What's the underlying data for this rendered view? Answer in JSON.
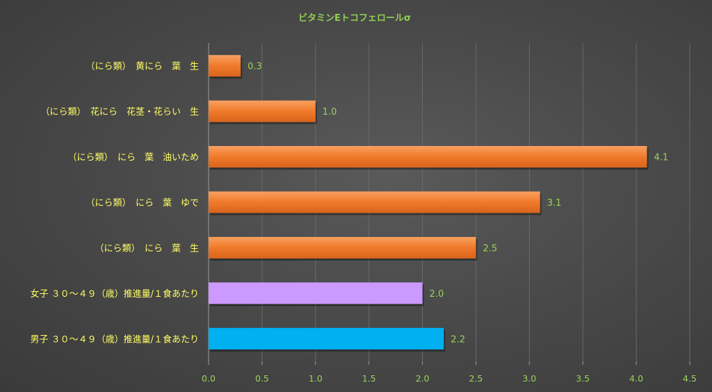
{
  "chart_data": {
    "type": "bar",
    "orientation": "horizontal",
    "title": "ビタミンEトコフェロールσ",
    "categories": [
      "（にら類）　黄にら　葉　生",
      "（にら類）　花にら　花茎・花らい　生",
      "（にら類）　にら　葉　油いため",
      "（にら類）　にら　葉　ゆで",
      "（にら類）　にら　葉　生",
      "女子 ３０～４９（歳）推進量/１食あたり",
      "男子 ３０～４９（歳）推進量/１食あたり"
    ],
    "values": [
      0.3,
      1.0,
      4.1,
      3.1,
      2.5,
      2.0,
      2.2
    ],
    "value_labels": [
      "0.3",
      "1.0",
      "4.1",
      "3.1",
      "2.5",
      "2.0",
      "2.2"
    ],
    "bar_colors": [
      "#f07828",
      "#f07828",
      "#f07828",
      "#f07828",
      "#f07828",
      "#cc99ff",
      "#00b0f0"
    ],
    "xlim": [
      0,
      4.5
    ],
    "x_ticks": [
      "0.0",
      "0.5",
      "1.0",
      "1.5",
      "2.0",
      "2.5",
      "3.0",
      "3.5",
      "4.0",
      "4.5"
    ],
    "grid": true,
    "legend": false,
    "xlabel": "",
    "ylabel": ""
  }
}
